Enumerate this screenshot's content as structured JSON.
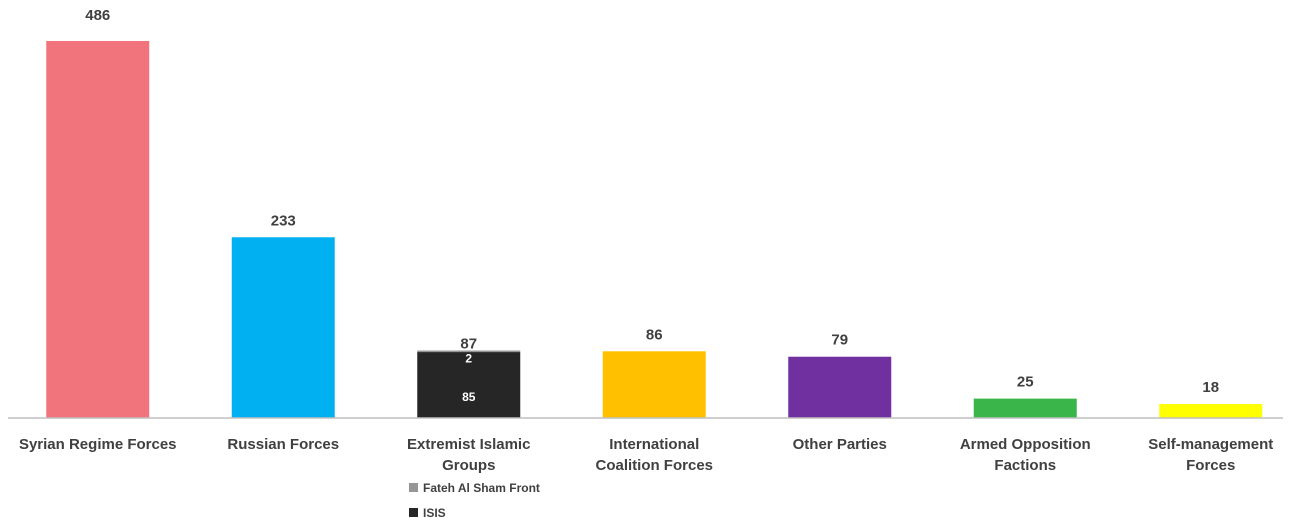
{
  "chart_data": {
    "type": "bar",
    "categories": [
      [
        "Syrian Regime Forces"
      ],
      [
        "Russian Forces"
      ],
      [
        "Extremist Islamic",
        "Groups"
      ],
      [
        "International",
        "Coalition Forces"
      ],
      [
        "Other Parties"
      ],
      [
        "Armed Opposition",
        "Factions"
      ],
      [
        "Self-management",
        "Forces"
      ]
    ],
    "values": [
      486,
      233,
      87,
      86,
      79,
      25,
      18
    ],
    "colors": [
      "#f1737b",
      "#00b0f0",
      "#262626",
      "#ffc000",
      "#7030a0",
      "#3ab54a",
      "#ffff00"
    ],
    "stacked": {
      "category_index": 2,
      "segments": [
        {
          "name": "ISIS",
          "value": 85,
          "color": "#262626"
        },
        {
          "name": "Fateh Al Sham Front",
          "value": 2,
          "color": "#969696"
        }
      ]
    },
    "legend": [
      {
        "name": "Fateh Al Sham Front",
        "color": "#969696"
      },
      {
        "name": "ISIS",
        "color": "#262626"
      }
    ],
    "legend_position": "below third category",
    "ylim": [
      0,
      486
    ],
    "grid": false
  }
}
